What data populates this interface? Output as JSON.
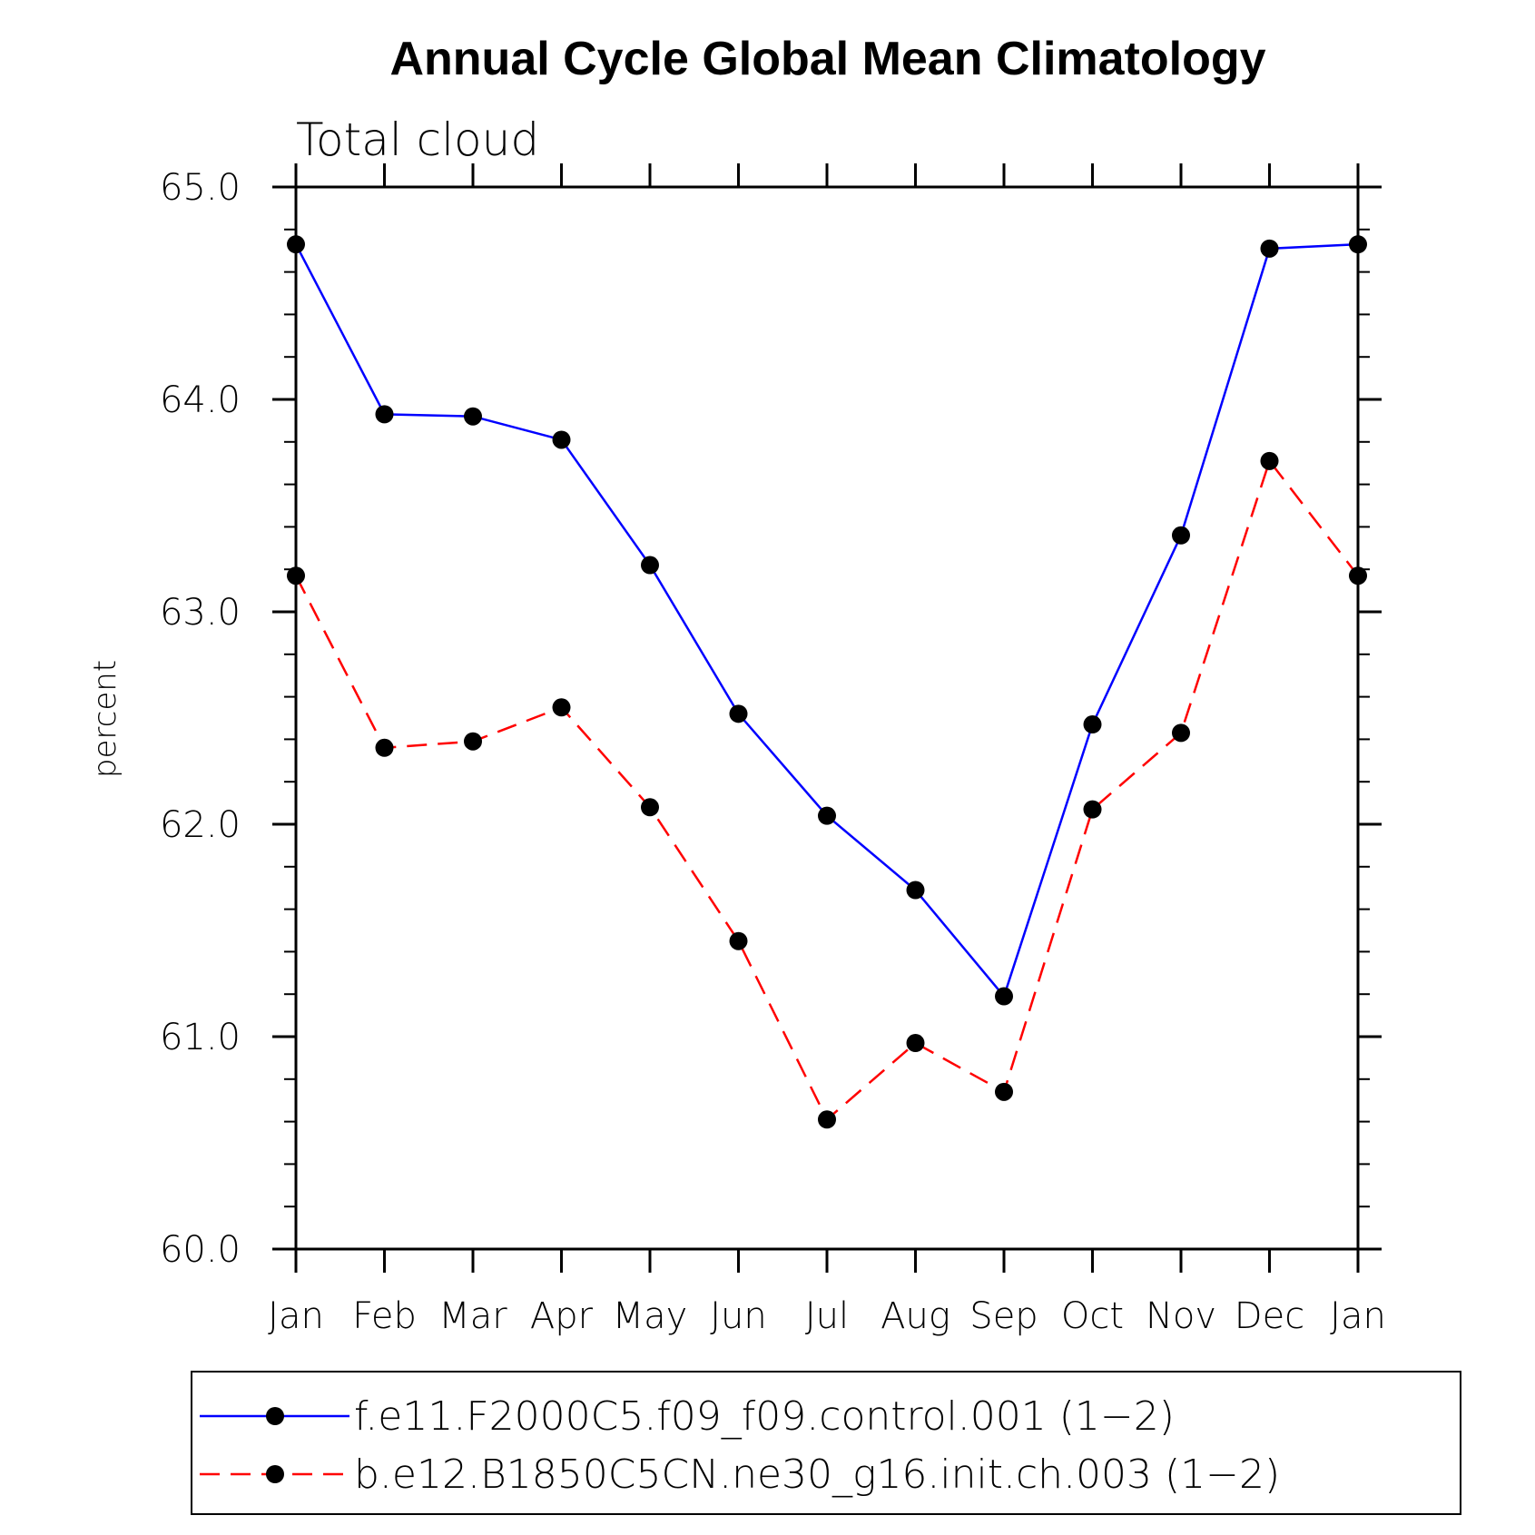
{
  "chart_data": {
    "type": "line",
    "title": "Annual Cycle Global Mean Climatology",
    "subtitle": "Total cloud",
    "xlabel": "",
    "ylabel": "percent",
    "categories": [
      "Jan",
      "Feb",
      "Mar",
      "Apr",
      "May",
      "Jun",
      "Jul",
      "Aug",
      "Sep",
      "Oct",
      "Nov",
      "Dec",
      "Jan"
    ],
    "ylim": [
      60.0,
      65.0
    ],
    "yticks": [
      "60.0",
      "61.0",
      "62.0",
      "63.0",
      "64.0",
      "65.0"
    ],
    "grid": false,
    "legend_position": "bottom",
    "series": [
      {
        "name": "f.e11.F2000C5.f09_f09.control.001 (1−2)",
        "color": "#0000ff",
        "style": "solid",
        "marker": "filled-circle",
        "values": [
          64.73,
          63.93,
          63.92,
          63.81,
          63.22,
          62.52,
          62.04,
          61.69,
          61.19,
          62.47,
          63.36,
          64.71,
          64.73
        ]
      },
      {
        "name": "b.e12.B1850C5CN.ne30_g16.init.ch.003 (1−2)",
        "color": "#ff0000",
        "style": "dashed",
        "marker": "filled-circle",
        "values": [
          63.17,
          62.36,
          62.39,
          62.55,
          62.08,
          61.45,
          60.61,
          60.97,
          60.74,
          62.07,
          62.43,
          63.71,
          63.17
        ]
      }
    ]
  }
}
